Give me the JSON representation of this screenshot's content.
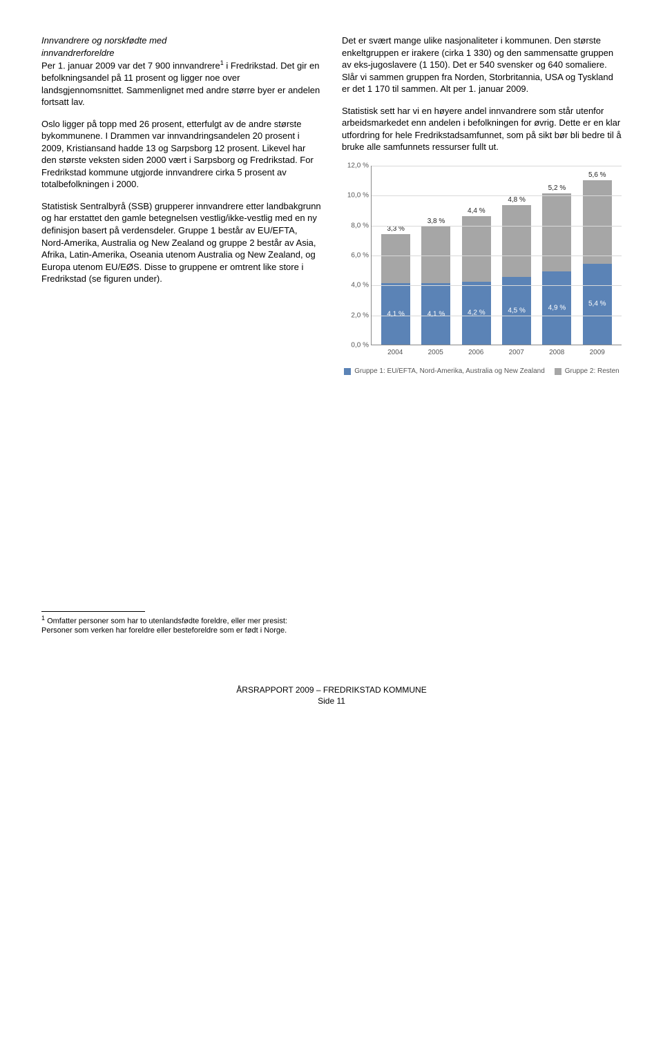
{
  "left": {
    "heading_lines": [
      "Innvandrere og norskfødte med",
      "innvandrerforeldre"
    ],
    "p1": "Per 1. januar 2009 var det 7 900 innvandrere",
    "p1b": "i Fredrikstad. Det gir en befolkningsandel på 11 prosent og ligger noe over landsgjennomsnittet. Sammenlignet med andre større byer er andelen fortsatt lav.",
    "sup1": "1",
    "p2": "Oslo ligger på topp med 26 prosent, etterfulgt av de andre største bykommunene. I Drammen var innvandringsandelen 20 prosent i 2009, Kristiansand hadde 13 og Sarpsborg 12 prosent. Likevel har den største veksten siden 2000 vært i Sarpsborg og Fredrikstad. For Fredrikstad kommune utgjorde innvandrere cirka 5 prosent av totalbefolkningen i 2000.",
    "p3": "Statistisk Sentralbyrå (SSB) grupperer innvandrere etter landbakgrunn og har erstattet den gamle betegnelsen vestlig/ikke-vestlig med en ny definisjon basert på verdensdeler. Gruppe 1 består av EU/EFTA, Nord-Amerika, Australia og New Zealand og gruppe 2 består av Asia, Afrika, Latin-Amerika, Oseania utenom Australia og New Zealand, og Europa utenom EU/EØS. Disse to gruppene er omtrent like store i Fredrikstad (se figuren under)."
  },
  "right": {
    "p1": "Det er svært mange ulike nasjonaliteter i kommunen. Den største enkeltgruppen er irakere (cirka 1 330) og den sammensatte gruppen av eks-jugoslavere (1 150). Det er 540 svensker og 640 somaliere. Slår vi sammen gruppen fra Norden, Storbritannia, USA og Tyskland er det 1 170 til sammen. Alt per 1. januar 2009.",
    "p2": "Statistisk sett har vi en høyere andel innvandrere som står utenfor arbeidsmarkedet enn andelen i befolkningen for øvrig. Dette er en klar utfordring for hele Fredrikstadsamfunnet, som på sikt bør bli bedre til å bruke alle samfunnets ressurser fullt ut."
  },
  "chart": {
    "ymax": 12,
    "ystep": 2,
    "ysuffix": ",0 %",
    "colors": {
      "g1": "#5b83b6",
      "g2": "#a6a6a6",
      "grid": "#d9d9d9"
    },
    "years": [
      "2004",
      "2005",
      "2006",
      "2007",
      "2008",
      "2009"
    ],
    "g1_values": [
      4.1,
      4.1,
      4.2,
      4.5,
      4.9,
      5.4
    ],
    "g2_values": [
      3.3,
      3.8,
      4.4,
      4.8,
      5.2,
      5.6
    ],
    "g1_labels": [
      "4,1 %",
      "4,1 %",
      "4,2 %",
      "4,5 %",
      "4,9 %",
      "5,4 %"
    ],
    "g2_labels": [
      "3,3 %",
      "3,8 %",
      "4,4 %",
      "4,8 %",
      "5,2 %",
      "5,6 %"
    ],
    "legend1": "Gruppe 1: EU/EFTA, Nord-Amerika, Australia og New Zealand",
    "legend2": "Gruppe 2: Resten"
  },
  "footnote": {
    "marker": "1",
    "text": "Omfatter personer som har to utenlandsfødte foreldre, eller mer presist: Personer som verken har foreldre eller besteforeldre som er født i Norge."
  },
  "footer": {
    "line1": "ÅRSRAPPORT 2009 – FREDRIKSTAD KOMMUNE",
    "line2": "Side 11"
  }
}
